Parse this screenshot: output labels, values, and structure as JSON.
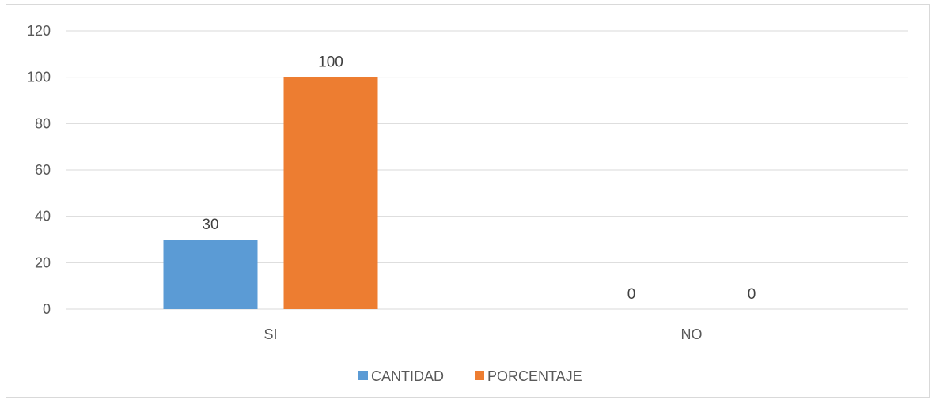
{
  "chart_data": {
    "type": "bar",
    "title": "",
    "xlabel": "",
    "ylabel": "",
    "categories": [
      "SI",
      "NO"
    ],
    "series": [
      {
        "name": "CANTIDAD",
        "values": [
          30,
          0
        ],
        "color": "#5b9bd5"
      },
      {
        "name": "PORCENTAJE",
        "values": [
          100,
          0
        ],
        "color": "#ed7d31"
      }
    ],
    "ylim": [
      0,
      120
    ],
    "yticks": [
      0,
      20,
      40,
      60,
      80,
      100,
      120
    ],
    "grid": true,
    "legend_position": "bottom",
    "data_labels": true
  }
}
